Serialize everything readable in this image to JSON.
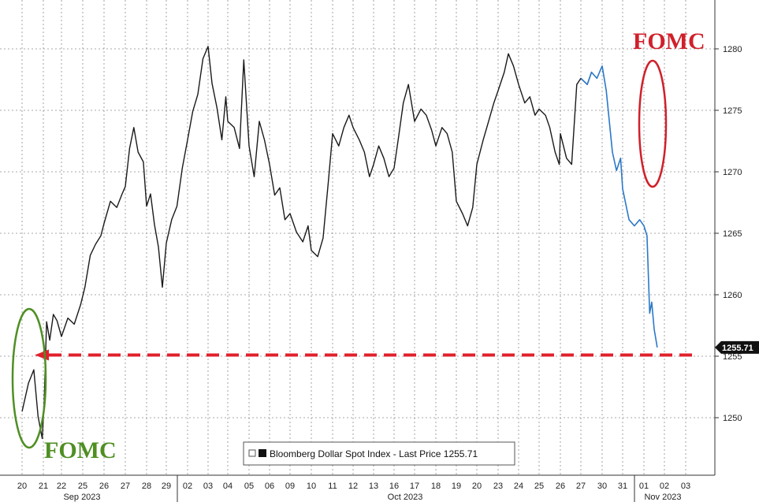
{
  "chart_data": {
    "type": "line",
    "title": "",
    "xlabel": "",
    "ylabel": "",
    "ylim": [
      1245,
      1283
    ],
    "yticks": [
      1250,
      1255,
      1260,
      1265,
      1270,
      1275,
      1280
    ],
    "grid": true,
    "legend_position": "bottom-center",
    "legend_text": "Bloomberg Dollar Spot Index - Last Price 1255.71",
    "last_value_label": "1255.71",
    "colors": {
      "line": "#1a1a1a",
      "recent_line": "#2b78c8",
      "green_annotation": "#4f8f23",
      "red_annotation": "#d0202a",
      "grid": "#8c8c8c",
      "last_value_badge": "#111111"
    },
    "x_tick_labels": [
      "20",
      "21",
      "22",
      "25",
      "26",
      "27",
      "28",
      "29",
      "02",
      "03",
      "04",
      "05",
      "06",
      "09",
      "10",
      "11",
      "12",
      "13",
      "16",
      "17",
      "18",
      "19",
      "20",
      "23",
      "24",
      "25",
      "26",
      "27",
      "30",
      "31",
      "01",
      "02",
      "03"
    ],
    "month_labels": [
      "Sep 2023",
      "Oct 2023",
      "Nov 2023"
    ],
    "annotations": {
      "fomc_sep": "FOMC",
      "fomc_nov": "FOMC"
    },
    "reference_level": 1255.1,
    "series": [
      {
        "values": [
          [
            0.0,
            1250.5
          ],
          [
            0.3,
            1252.8
          ],
          [
            0.55,
            1253.9
          ],
          [
            0.75,
            1250.1
          ],
          [
            0.95,
            1248.3
          ],
          [
            1.05,
            1251.4
          ],
          [
            1.18,
            1257.8
          ],
          [
            1.35,
            1256.3
          ],
          [
            1.55,
            1258.4
          ],
          [
            1.75,
            1257.9
          ],
          [
            2.0,
            1256.6
          ],
          [
            2.3,
            1258.1
          ],
          [
            2.6,
            1257.6
          ],
          [
            2.9,
            1259.2
          ],
          [
            3.1,
            1260.6
          ],
          [
            3.35,
            1263.2
          ],
          [
            3.6,
            1264.1
          ],
          [
            3.85,
            1264.8
          ],
          [
            4.0,
            1265.8
          ],
          [
            4.3,
            1267.6
          ],
          [
            4.6,
            1267.1
          ],
          [
            4.85,
            1268.2
          ],
          [
            5.0,
            1268.8
          ],
          [
            5.2,
            1271.9
          ],
          [
            5.4,
            1273.6
          ],
          [
            5.6,
            1271.6
          ],
          [
            5.85,
            1270.8
          ],
          [
            6.0,
            1267.2
          ],
          [
            6.2,
            1268.2
          ],
          [
            6.4,
            1265.7
          ],
          [
            6.6,
            1263.9
          ],
          [
            6.8,
            1260.6
          ],
          [
            7.0,
            1264.2
          ],
          [
            7.25,
            1266.1
          ],
          [
            7.5,
            1267.2
          ],
          [
            7.75,
            1270.3
          ],
          [
            8.0,
            1272.6
          ],
          [
            8.25,
            1274.9
          ],
          [
            8.5,
            1276.3
          ],
          [
            8.75,
            1279.2
          ],
          [
            9.0,
            1280.2
          ],
          [
            9.2,
            1277.2
          ],
          [
            9.45,
            1275.2
          ],
          [
            9.7,
            1272.6
          ],
          [
            9.9,
            1276.1
          ],
          [
            10.0,
            1274.1
          ],
          [
            10.3,
            1273.6
          ],
          [
            10.55,
            1271.9
          ],
          [
            10.75,
            1279.1
          ],
          [
            11.0,
            1272.1
          ],
          [
            11.25,
            1269.6
          ],
          [
            11.5,
            1274.1
          ],
          [
            11.75,
            1272.6
          ],
          [
            12.0,
            1270.6
          ],
          [
            12.25,
            1268.1
          ],
          [
            12.5,
            1268.7
          ],
          [
            12.75,
            1266.1
          ],
          [
            13.0,
            1266.6
          ],
          [
            13.3,
            1265.1
          ],
          [
            13.6,
            1264.3
          ],
          [
            13.85,
            1265.6
          ],
          [
            14.0,
            1263.6
          ],
          [
            14.3,
            1263.1
          ],
          [
            14.55,
            1264.6
          ],
          [
            14.8,
            1269.2
          ],
          [
            15.0,
            1273.1
          ],
          [
            15.3,
            1272.1
          ],
          [
            15.55,
            1273.6
          ],
          [
            15.8,
            1274.6
          ],
          [
            16.0,
            1273.6
          ],
          [
            16.3,
            1272.6
          ],
          [
            16.55,
            1271.6
          ],
          [
            16.8,
            1269.6
          ],
          [
            17.0,
            1270.6
          ],
          [
            17.25,
            1272.1
          ],
          [
            17.5,
            1271.1
          ],
          [
            17.75,
            1269.6
          ],
          [
            18.0,
            1270.3
          ],
          [
            18.2,
            1272.6
          ],
          [
            18.45,
            1275.6
          ],
          [
            18.7,
            1277.1
          ],
          [
            18.9,
            1275.1
          ],
          [
            19.0,
            1274.1
          ],
          [
            19.3,
            1275.1
          ],
          [
            19.55,
            1274.6
          ],
          [
            19.8,
            1273.4
          ],
          [
            20.0,
            1272.1
          ],
          [
            20.3,
            1273.6
          ],
          [
            20.55,
            1273.1
          ],
          [
            20.8,
            1271.6
          ],
          [
            21.0,
            1267.6
          ],
          [
            21.3,
            1266.6
          ],
          [
            21.55,
            1265.6
          ],
          [
            21.8,
            1267.1
          ],
          [
            22.0,
            1270.6
          ],
          [
            22.3,
            1272.6
          ],
          [
            22.55,
            1274.1
          ],
          [
            22.8,
            1275.6
          ],
          [
            23.0,
            1276.6
          ],
          [
            23.3,
            1278.1
          ],
          [
            23.5,
            1279.6
          ],
          [
            23.75,
            1278.6
          ],
          [
            24.0,
            1277.1
          ],
          [
            24.3,
            1275.6
          ],
          [
            24.55,
            1276.1
          ],
          [
            24.8,
            1274.6
          ],
          [
            25.0,
            1275.1
          ],
          [
            25.3,
            1274.6
          ],
          [
            25.5,
            1273.6
          ],
          [
            25.75,
            1271.6
          ],
          [
            25.95,
            1270.6
          ],
          [
            26.0,
            1273.1
          ],
          [
            26.3,
            1271.1
          ],
          [
            26.55,
            1270.6
          ],
          [
            26.8,
            1277.1
          ],
          [
            27.0,
            1277.6
          ],
          [
            27.3,
            1277.1
          ],
          [
            27.5,
            1278.1
          ],
          [
            27.75,
            1277.6
          ],
          [
            28.0,
            1278.6
          ],
          [
            28.2,
            1276.6
          ],
          [
            28.35,
            1274.1
          ],
          [
            28.5,
            1271.6
          ],
          [
            28.7,
            1270.1
          ],
          [
            28.9,
            1271.1
          ],
          [
            29.0,
            1268.6
          ],
          [
            29.3,
            1266.1
          ],
          [
            29.55,
            1265.6
          ],
          [
            29.8,
            1266.1
          ],
          [
            30.0,
            1265.6
          ],
          [
            30.15,
            1264.8
          ],
          [
            30.28,
            1258.5
          ],
          [
            30.38,
            1259.4
          ],
          [
            30.5,
            1257.2
          ],
          [
            30.65,
            1255.71
          ]
        ]
      }
    ]
  }
}
